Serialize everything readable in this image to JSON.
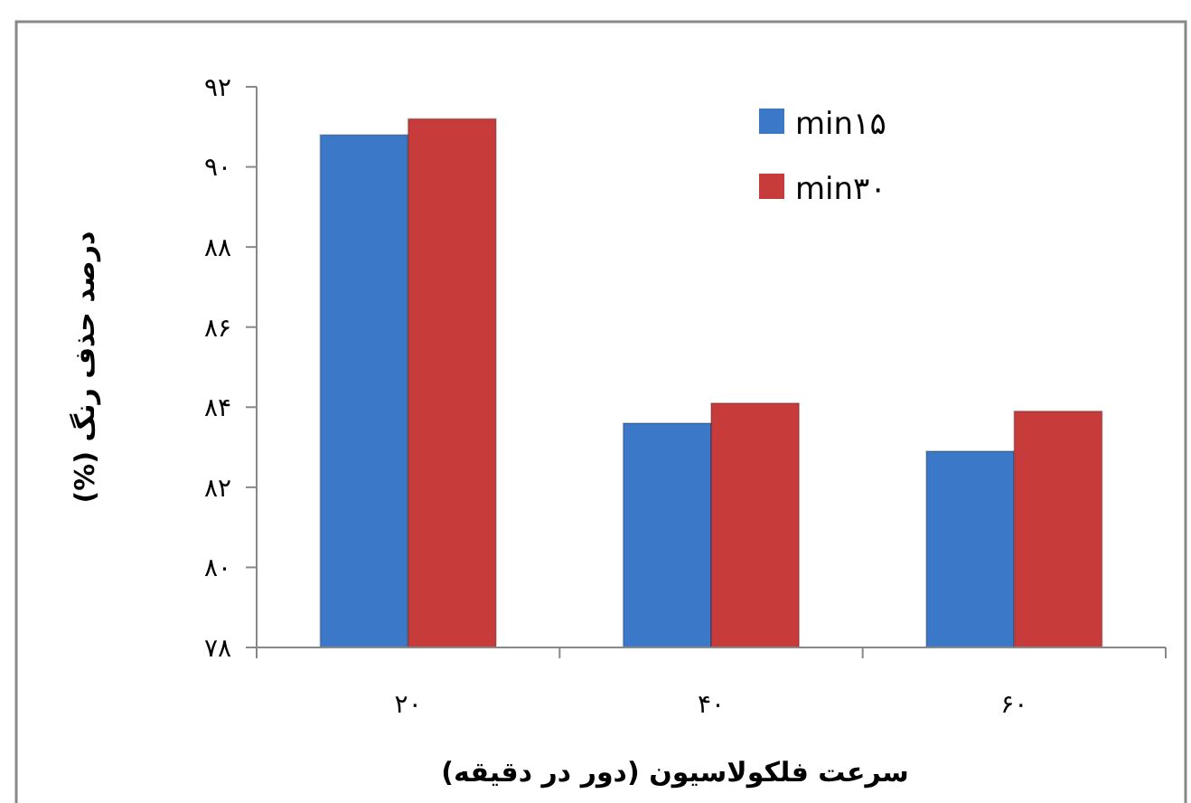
{
  "chart_data": {
    "type": "bar",
    "xlabel": "سرعت فلکولاسیون (دور در دقیقه)",
    "ylabel": "درصد حذف رنگ (%)",
    "categories": [
      "۲۰",
      "۴۰",
      "۶۰"
    ],
    "series": [
      {
        "name": "min۱۵",
        "color": "#3b78c8",
        "values": [
          90.8,
          83.6,
          82.9
        ]
      },
      {
        "name": "min۳۰",
        "color": "#c83b3b",
        "values": [
          91.2,
          84.1,
          83.9
        ]
      }
    ],
    "ylim": [
      78,
      92
    ],
    "yticks": [
      {
        "value": 78,
        "label": "۷۸"
      },
      {
        "value": 80,
        "label": "۸۰"
      },
      {
        "value": 82,
        "label": "۸۲"
      },
      {
        "value": 84,
        "label": "۸۴"
      },
      {
        "value": 86,
        "label": "۸۶"
      },
      {
        "value": 88,
        "label": "۸۸"
      },
      {
        "value": 90,
        "label": "۹۰"
      },
      {
        "value": 92,
        "label": "۹۲"
      }
    ],
    "grid": false,
    "legend": "top right"
  }
}
